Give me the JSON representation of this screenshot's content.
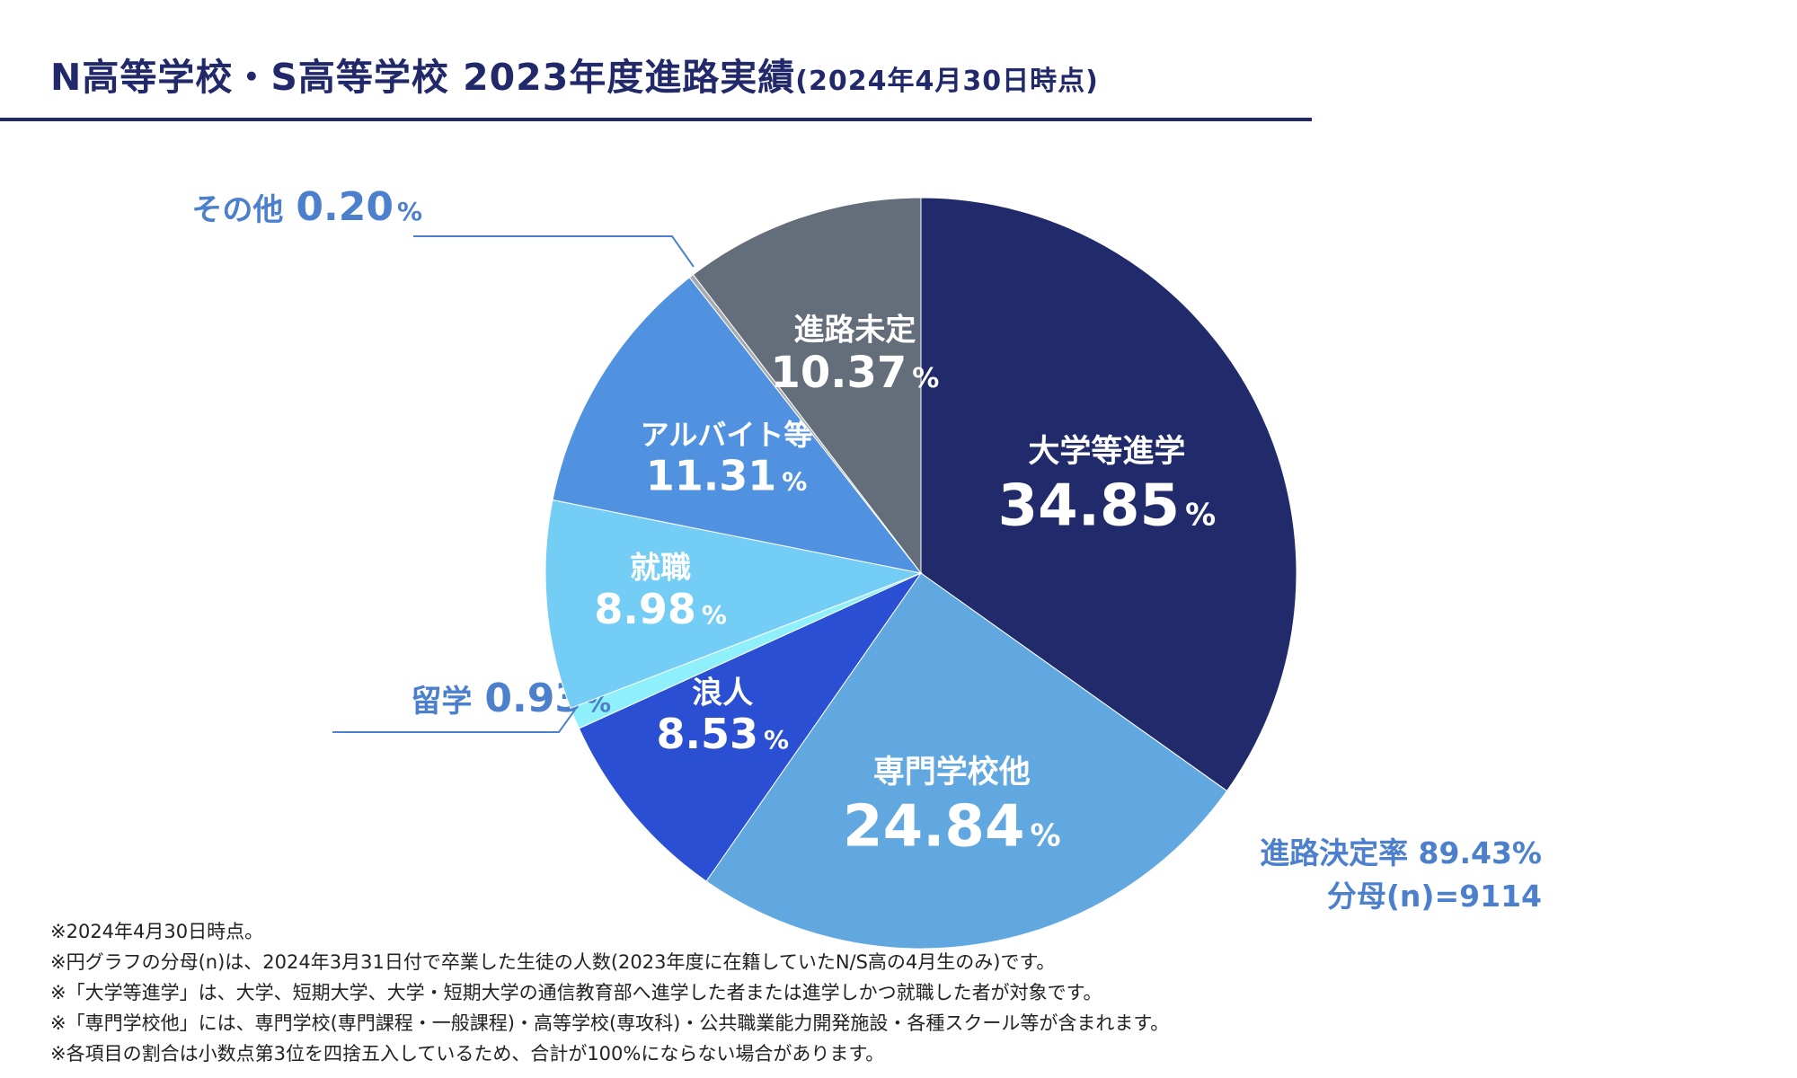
{
  "title": "N高等学校・S高等学校 2023年度進路実績",
  "title_sub": "(2024年4月30日時点)",
  "chart_data": {
    "type": "pie",
    "unit": "%",
    "slices": [
      {
        "label": "大学等進学",
        "value": 34.85,
        "display": "34.85",
        "color": "#212a6a",
        "text_color": "#ffffff"
      },
      {
        "label": "専門学校他",
        "value": 24.84,
        "display": "24.84",
        "color": "#62a8e0",
        "text_color": "#ffffff"
      },
      {
        "label": "浪人",
        "value": 8.53,
        "display": "8.53",
        "color": "#2b4fd2",
        "text_color": "#ffffff"
      },
      {
        "label": "留学",
        "value": 0.93,
        "display": "0.93",
        "color": "#8ff0fb",
        "text_color": "#4c80cd"
      },
      {
        "label": "就職",
        "value": 8.98,
        "display": "8.98",
        "color": "#74cdf4",
        "text_color": "#ffffff"
      },
      {
        "label": "アルバイト等",
        "value": 11.31,
        "display": "11.31",
        "color": "#5192e0",
        "text_color": "#ffffff"
      },
      {
        "label": "その他",
        "value": 0.2,
        "display": "0.20",
        "color": "#a7abb0",
        "text_color": "#4c80cd"
      },
      {
        "label": "進路未定",
        "value": 10.37,
        "display": "10.37",
        "color": "#636e7a",
        "text_color": "#ffffff"
      }
    ]
  },
  "summary": {
    "rate_label": "進路決定率 89.43%",
    "denominator": "分母(n)=9114"
  },
  "notes": [
    "※2024年4月30日時点。",
    "※円グラフの分母(n)は、2024年3月31日付で卒業した生徒の人数(2023年度に在籍していたN/S高の4月生のみ)です。",
    "※「大学等進学」は、大学、短期大学、大学・短期大学の通信教育部へ進学した者または進学しかつ就職した者が対象です。",
    "※「専門学校他」には、専門学校(専門課程・一般課程)・高等学校(専攻科)・公共職業能力開発施設・各種スクール等が含まれます。",
    "※各項目の割合は小数点第3位を四捨五入しているため、合計が100%にならない場合があります。"
  ]
}
